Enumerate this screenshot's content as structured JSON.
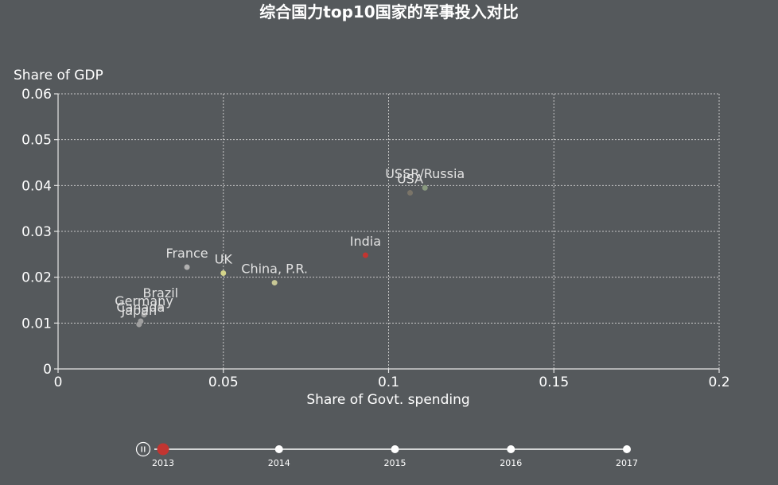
{
  "chart_data": {
    "type": "scatter",
    "title": "综合国力top10国家的军事投入对比",
    "xlabel": "Share of Govt. spending",
    "ylabel": "Share of GDP",
    "xlim": [
      0,
      0.2
    ],
    "ylim": [
      0,
      0.06
    ],
    "x_ticks": [
      "0",
      "0.05",
      "0.1",
      "0.15",
      "0.2"
    ],
    "y_ticks": [
      "0",
      "0.01",
      "0.02",
      "0.03",
      "0.04",
      "0.05",
      "0.06"
    ],
    "grid": true,
    "points": [
      {
        "label": "USSR/Russia",
        "x": 0.111,
        "y": 0.0395,
        "color": "#8a9a80"
      },
      {
        "label": "USA",
        "x": 0.1065,
        "y": 0.0384,
        "color": "#7a7468"
      },
      {
        "label": "India",
        "x": 0.093,
        "y": 0.0248,
        "color": "#c23531"
      },
      {
        "label": "China, P.R.",
        "x": 0.0655,
        "y": 0.0188,
        "color": "#c8c896"
      },
      {
        "label": "UK",
        "x": 0.05,
        "y": 0.0209,
        "color": "#d4d48a"
      },
      {
        "label": "France",
        "x": 0.039,
        "y": 0.0222,
        "color": "#b0b0b0"
      },
      {
        "label": "Brazil",
        "x": 0.031,
        "y": 0.0135,
        "color": "#a0a0a0"
      },
      {
        "label": "Germany",
        "x": 0.026,
        "y": 0.0118,
        "color": "#a0a0a0"
      },
      {
        "label": "Canada",
        "x": 0.025,
        "y": 0.0104,
        "color": "#a0a0a0"
      },
      {
        "label": "Japan",
        "x": 0.0245,
        "y": 0.0097,
        "color": "#a0a0a0"
      }
    ]
  },
  "timeline": {
    "years": [
      "2013",
      "2014",
      "2015",
      "2016",
      "2017"
    ],
    "current": "2013",
    "play_icon": "pause-icon",
    "accent": "#c23531"
  }
}
